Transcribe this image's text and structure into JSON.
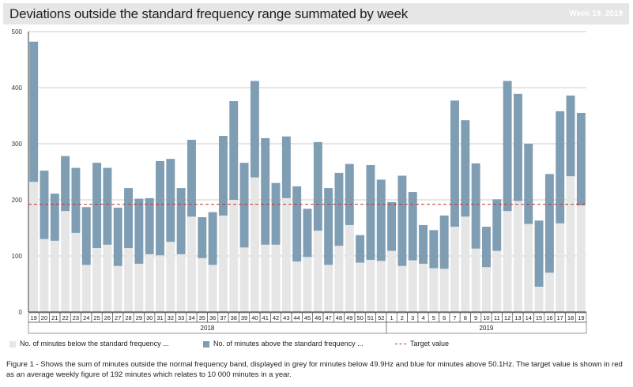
{
  "header": {
    "title": "Deviations outside the standard frequency range summated by week",
    "week": "Week 19, 2019"
  },
  "legend": {
    "below": "No. of minutes below the standard frequency ...",
    "above": "No. of minutes above the standard frequency ...",
    "target": "Target value"
  },
  "caption": "Figure 1 - Shows the sum of minutes outside the normal frequency band, displayed in grey for minutes below 49.9Hz and blue for minutes above 50.1Hz. The target value is shown in red as an average weekly figure of 192 minutes which relates to 10 000 minutes in a year.",
  "colors": {
    "below": "#e6e6e6",
    "above": "#7f9db3",
    "target": "#c0392b",
    "grid": "#cccccc"
  },
  "chart_data": {
    "type": "bar",
    "stacked": true,
    "ylim": [
      0,
      500
    ],
    "yticks": [
      0,
      100,
      200,
      300,
      400,
      500
    ],
    "target": 192,
    "groups": [
      {
        "label": "2018",
        "start": 0,
        "end": 33
      },
      {
        "label": "2019",
        "start": 34,
        "end": 52
      }
    ],
    "categories": [
      "19",
      "20",
      "21",
      "22",
      "23",
      "24",
      "25",
      "26",
      "27",
      "28",
      "29",
      "30",
      "31",
      "32",
      "33",
      "34",
      "35",
      "36",
      "37",
      "38",
      "39",
      "40",
      "41",
      "42",
      "43",
      "44",
      "45",
      "46",
      "47",
      "48",
      "49",
      "50",
      "51",
      "52",
      "1",
      "2",
      "3",
      "4",
      "5",
      "6",
      "7",
      "8",
      "9",
      "10",
      "11",
      "12",
      "13",
      "14",
      "15",
      "16",
      "17",
      "18",
      "19"
    ],
    "series": [
      {
        "name": "No. of minutes below the standard frequency",
        "values": [
          232,
          130,
          127,
          180,
          141,
          84,
          114,
          120,
          82,
          114,
          86,
          103,
          101,
          125,
          103,
          170,
          96,
          84,
          172,
          200,
          115,
          240,
          120,
          120,
          203,
          90,
          98,
          145,
          84,
          118,
          155,
          88,
          93,
          91,
          109,
          82,
          92,
          86,
          78,
          77,
          152,
          170,
          113,
          80,
          109,
          180,
          198,
          157,
          45,
          70,
          158,
          242,
          190
        ]
      },
      {
        "name": "No. of minutes above the standard frequency",
        "values": [
          250,
          122,
          84,
          98,
          116,
          103,
          152,
          137,
          104,
          107,
          116,
          100,
          168,
          148,
          118,
          137,
          73,
          94,
          142,
          176,
          151,
          172,
          190,
          110,
          110,
          134,
          86,
          158,
          137,
          130,
          109,
          49,
          169,
          145,
          87,
          161,
          122,
          69,
          68,
          95,
          225,
          172,
          152,
          72,
          92,
          232,
          191,
          143,
          118,
          176,
          200,
          144,
          165
        ]
      }
    ]
  }
}
